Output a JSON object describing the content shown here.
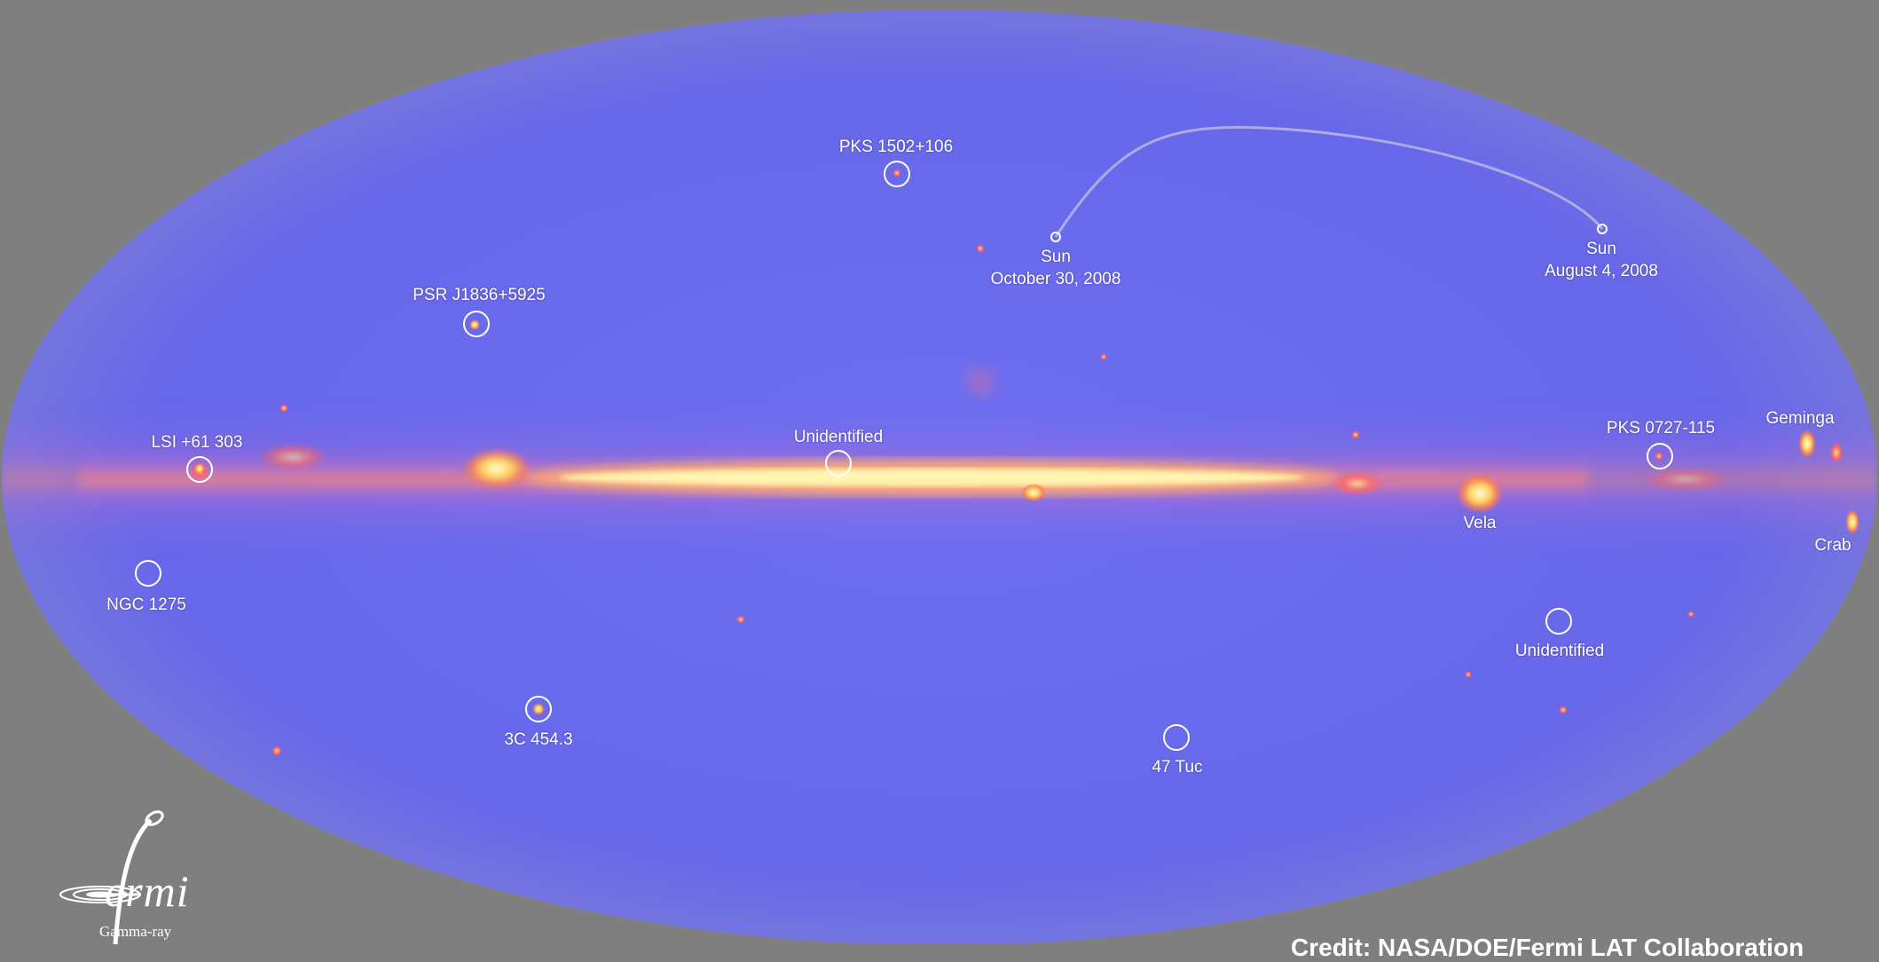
{
  "sources": [
    {
      "key": "pks1502",
      "label": "PKS 1502+106"
    },
    {
      "key": "psr1836",
      "label": "PSR J1836+5925"
    },
    {
      "key": "lsi61",
      "label": "LSI +61 303"
    },
    {
      "key": "ngc1275",
      "label": "NGC 1275"
    },
    {
      "key": "c3c454",
      "label": "3C 454.3"
    },
    {
      "key": "unid_center",
      "label": "Unidentified"
    },
    {
      "key": "tuc47",
      "label": "47 Tuc"
    },
    {
      "key": "vela",
      "label": "Vela"
    },
    {
      "key": "pks0727",
      "label": "PKS 0727-115"
    },
    {
      "key": "geminga",
      "label": "Geminga"
    },
    {
      "key": "crab",
      "label": "Crab"
    },
    {
      "key": "unid_right",
      "label": "Unidentified"
    }
  ],
  "sun_path": {
    "start_label": "Sun",
    "start_date": "October 30, 2008",
    "end_label": "Sun",
    "end_date": "August 4, 2008"
  },
  "logo": {
    "word": "ermi",
    "subtitle": "Gamma-ray",
    "icon": "fermi-logo-icon"
  },
  "credit": "Credit: NASA/DOE/Fermi LAT Collaboration",
  "colors": {
    "background": "#7f7f7f",
    "sky": "#6a6aee",
    "plane_core": "#fff7b0",
    "plane_glow": "#ff9a6a",
    "markers": "#ffffff"
  }
}
